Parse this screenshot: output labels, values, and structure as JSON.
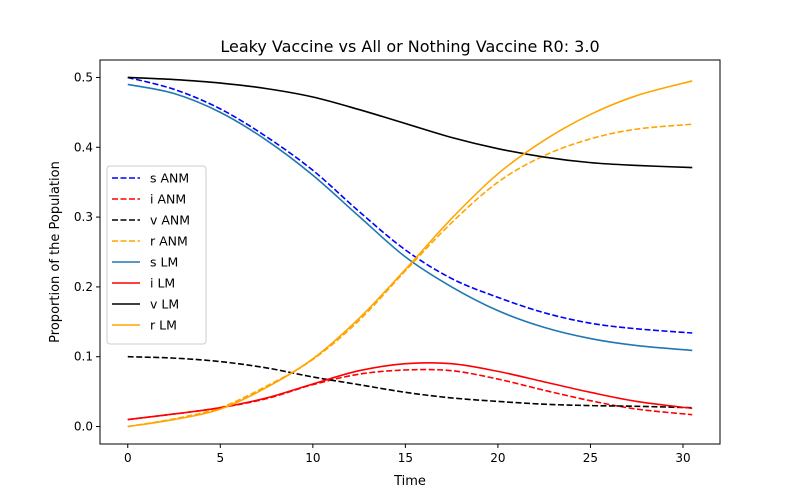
{
  "chart_data": {
    "type": "line",
    "title": "Leaky Vaccine vs All or Nothing Vaccine R0: 3.0",
    "xlabel": "Time",
    "ylabel": "Proportion of the Population",
    "xlim": [
      -1.5,
      32
    ],
    "ylim": [
      -0.025,
      0.525
    ],
    "xticks": [
      0,
      5,
      10,
      15,
      20,
      25,
      30
    ],
    "yticks": [
      0.0,
      0.1,
      0.2,
      0.3,
      0.4,
      0.5
    ],
    "xtick_labels": [
      "0",
      "5",
      "10",
      "15",
      "20",
      "25",
      "30"
    ],
    "ytick_labels": [
      "0.0",
      "0.1",
      "0.2",
      "0.3",
      "0.4",
      "0.5"
    ],
    "grid": false,
    "legend_position": "center-left",
    "x": [
      0,
      2.5,
      5,
      7.5,
      10,
      12.5,
      15,
      17.5,
      20,
      22.5,
      25,
      27.5,
      30.5
    ],
    "series": [
      {
        "name": "s ANM",
        "color": "#0000ff",
        "dash": true,
        "values": [
          0.5,
          0.483,
          0.455,
          0.415,
          0.367,
          0.308,
          0.253,
          0.212,
          0.185,
          0.163,
          0.148,
          0.14,
          0.134
        ]
      },
      {
        "name": "i ANM",
        "color": "#ff0000",
        "dash": true,
        "values": [
          0.01,
          0.018,
          0.027,
          0.04,
          0.06,
          0.075,
          0.081,
          0.08,
          0.068,
          0.052,
          0.037,
          0.025,
          0.017
        ]
      },
      {
        "name": "v ANM",
        "color": "#000000",
        "dash": true,
        "values": [
          0.1,
          0.098,
          0.093,
          0.084,
          0.071,
          0.06,
          0.049,
          0.041,
          0.036,
          0.032,
          0.03,
          0.029,
          0.027
        ]
      },
      {
        "name": "r ANM",
        "color": "#ffa500",
        "dash": true,
        "values": [
          0.0,
          0.011,
          0.027,
          0.058,
          0.096,
          0.152,
          0.223,
          0.292,
          0.35,
          0.388,
          0.412,
          0.426,
          0.433
        ]
      },
      {
        "name": "s LM",
        "color": "#1f77b4",
        "dash": false,
        "values": [
          0.49,
          0.477,
          0.45,
          0.41,
          0.36,
          0.301,
          0.243,
          0.2,
          0.166,
          0.142,
          0.126,
          0.116,
          0.109
        ]
      },
      {
        "name": "i LM",
        "color": "#ff0000",
        "dash": false,
        "values": [
          0.01,
          0.018,
          0.027,
          0.041,
          0.061,
          0.08,
          0.09,
          0.09,
          0.079,
          0.064,
          0.049,
          0.036,
          0.026
        ]
      },
      {
        "name": "v LM",
        "color": "#000000",
        "dash": false,
        "values": [
          0.5,
          0.497,
          0.492,
          0.484,
          0.472,
          0.454,
          0.434,
          0.414,
          0.398,
          0.386,
          0.378,
          0.374,
          0.371
        ]
      },
      {
        "name": "r LM",
        "color": "#ffa500",
        "dash": false,
        "values": [
          0.0,
          0.01,
          0.025,
          0.056,
          0.097,
          0.155,
          0.225,
          0.298,
          0.362,
          0.41,
          0.447,
          0.474,
          0.495
        ]
      }
    ]
  }
}
